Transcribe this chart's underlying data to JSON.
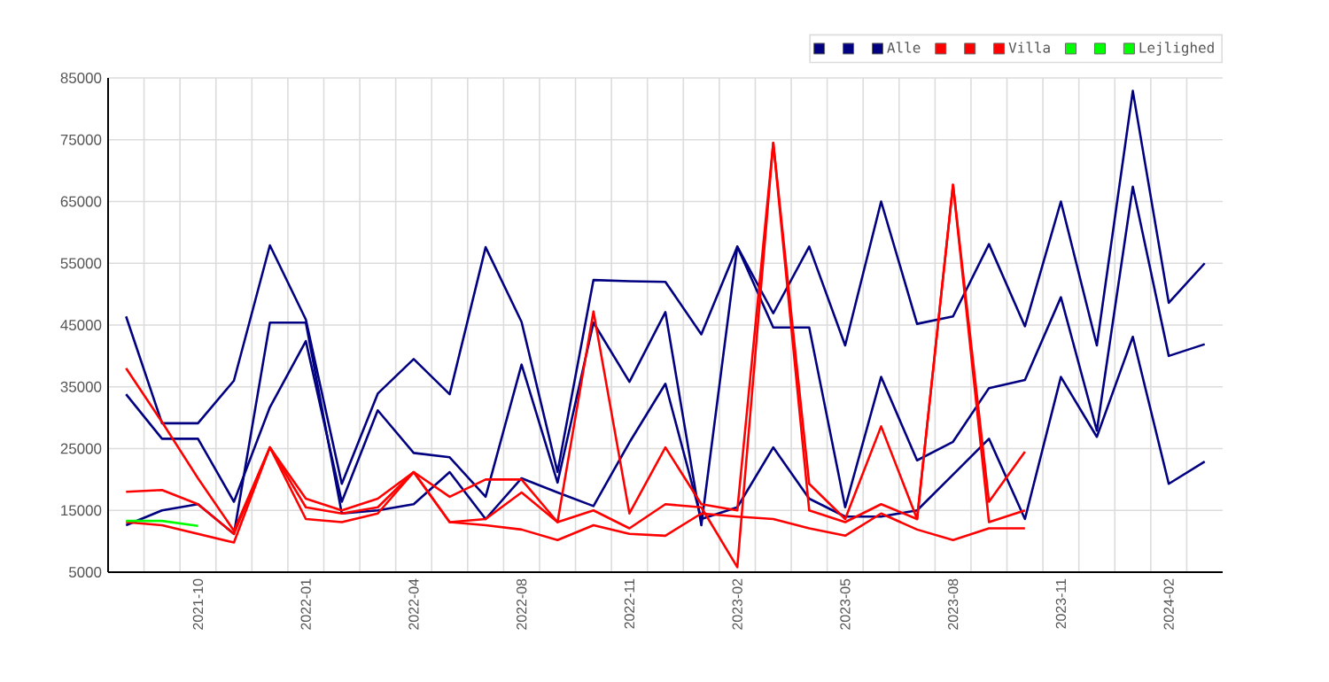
{
  "chart_data": {
    "type": "line",
    "categories": [
      null,
      null,
      "2021-10",
      null,
      null,
      "2022-01",
      null,
      null,
      "2022-04",
      null,
      null,
      "2022-08",
      null,
      null,
      "2022-11",
      null,
      null,
      "2023-02",
      null,
      null,
      "2023-05",
      null,
      null,
      "2023-08",
      null,
      null,
      "2023-11",
      null,
      null,
      "2024-02",
      null
    ],
    "series": [
      {
        "color": "#000080",
        "values": [
          46400,
          29100,
          29100,
          36000,
          57900,
          45900,
          19300,
          33900,
          39500,
          33800,
          57600,
          45500,
          21200,
          52300,
          52100,
          52000,
          43500,
          57700,
          46900,
          57700,
          41700,
          65000,
          45200,
          46400,
          58100,
          44800,
          65000,
          41700,
          82900,
          48600,
          55000
        ]
      },
      {
        "color": "#000080",
        "values": [
          33800,
          26600,
          26600,
          16400,
          31700,
          42400,
          16400,
          31200,
          24300,
          23600,
          17200,
          38600,
          19500,
          45400,
          35800,
          47100,
          12600,
          57700,
          44600,
          44600,
          15500,
          36600,
          23100,
          26100,
          34800,
          36100,
          49500,
          27900,
          67400,
          40000,
          41900
        ]
      },
      {
        "name": "Alle",
        "color": "#000080",
        "values": [
          12600,
          15000,
          16000,
          11200,
          45400,
          45400,
          14500,
          15000,
          16000,
          21200,
          13600,
          20200,
          17900,
          15700,
          26000,
          35500,
          13600,
          15500,
          25200,
          16900,
          14000,
          14000,
          15000,
          20800,
          26600,
          13600,
          36600,
          26900,
          43100,
          19300,
          22900
        ]
      },
      {
        "color": "#ff0000",
        "values": [
          38000,
          29300,
          20200,
          11700,
          25200,
          16900,
          15000,
          16900,
          21200,
          17200,
          20000,
          20000,
          13100,
          47200,
          14500,
          25200,
          16000,
          15000,
          74500,
          19300,
          13600,
          28600,
          13600,
          67700,
          13100,
          15000,
          null,
          null,
          null,
          null,
          null
        ]
      },
      {
        "color": "#ff0000",
        "values": [
          18000,
          18300,
          16000,
          11200,
          25200,
          15500,
          14500,
          15500,
          21200,
          13100,
          13600,
          17900,
          13100,
          15000,
          12100,
          16000,
          15500,
          5800,
          74500,
          15000,
          13100,
          16000,
          13600,
          67700,
          16400,
          24500,
          null,
          null,
          null,
          null,
          null
        ]
      },
      {
        "name": "Villa",
        "color": "#ff0000",
        "values": [
          13100,
          12600,
          11200,
          9800,
          25200,
          13600,
          13100,
          14500,
          21200,
          13100,
          12600,
          11900,
          10200,
          12600,
          11200,
          10900,
          14500,
          14000,
          13600,
          12100,
          10900,
          14500,
          11900,
          10200,
          12100,
          12100,
          null,
          null,
          null,
          null,
          null
        ]
      },
      {
        "color": "#00ff00",
        "values": [
          null,
          null,
          null,
          null,
          null,
          null,
          null,
          null,
          null,
          null,
          null,
          null,
          null,
          null,
          null,
          null,
          null,
          null,
          null,
          null,
          null,
          null,
          null,
          null,
          null,
          null,
          null,
          null,
          null,
          null,
          null
        ]
      },
      {
        "color": "#00ff00",
        "values": [
          null,
          null,
          null,
          null,
          null,
          null,
          null,
          null,
          null,
          null,
          null,
          null,
          null,
          null,
          null,
          null,
          null,
          null,
          null,
          null,
          null,
          null,
          null,
          null,
          null,
          null,
          null,
          null,
          null,
          null,
          null
        ]
      },
      {
        "name": "Lejlighed",
        "color": "#00ff00",
        "values": [
          13300,
          13300,
          12500,
          null,
          null,
          null,
          null,
          null,
          null,
          null,
          null,
          null,
          null,
          null,
          null,
          null,
          null,
          null,
          null,
          null,
          null,
          null,
          null,
          null,
          null,
          null,
          null,
          null,
          null,
          null,
          null
        ]
      }
    ],
    "ylim": [
      5000,
      85000
    ],
    "yticks": [
      5000,
      15000,
      25000,
      35000,
      45000,
      55000,
      65000,
      75000,
      85000
    ],
    "grid": true,
    "legend": "top right"
  }
}
